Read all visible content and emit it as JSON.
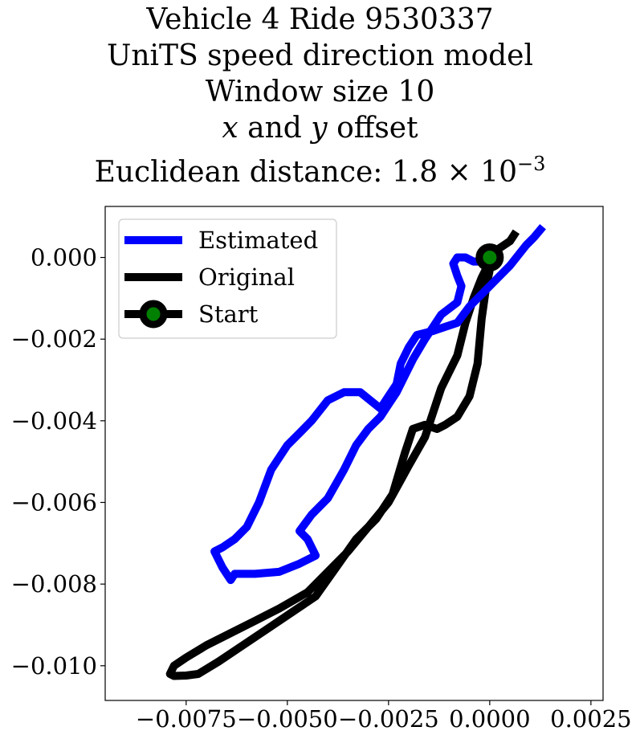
{
  "chart_data": {
    "type": "line",
    "title": {
      "line1": "Vehicle 4 Ride 9530337",
      "line2": "UniTS speed direction model",
      "line3": "Window size 10",
      "line4_var_x": "x",
      "line4_mid": " and ",
      "line4_var_y": "y",
      "line4_end": " offset",
      "line5_prefix": "Euclidean distance: 1.8 × 10",
      "line5_exponent": "−3"
    },
    "xlim": [
      -0.0095,
      0.0028
    ],
    "ylim": [
      -0.01085,
      0.00125
    ],
    "xticks": [
      {
        "value": -0.0075,
        "label": "−0.0075"
      },
      {
        "value": -0.005,
        "label": "−0.0050"
      },
      {
        "value": -0.0025,
        "label": "−0.0025"
      },
      {
        "value": 0.0,
        "label": "0.0000"
      },
      {
        "value": 0.0025,
        "label": "0.0025"
      }
    ],
    "yticks": [
      {
        "value": 0.0,
        "label": "0.000"
      },
      {
        "value": -0.002,
        "label": "−0.002"
      },
      {
        "value": -0.004,
        "label": "−0.004"
      },
      {
        "value": -0.006,
        "label": "−0.006"
      },
      {
        "value": -0.008,
        "label": "−0.008"
      },
      {
        "value": -0.01,
        "label": "−0.010"
      }
    ],
    "grid": false,
    "legend_position": "top-left",
    "series": [
      {
        "name": "Estimated",
        "color": "#0000ff",
        "x": [
          0.00125,
          0.0011,
          0.0009,
          0.0005,
          0.0,
          -0.0005,
          -0.0008,
          -0.0011,
          -0.0014,
          -0.0018,
          -0.002,
          -0.0022,
          -0.0023,
          -0.0025,
          -0.0027,
          -0.0032,
          -0.0036,
          -0.004,
          -0.0044,
          -0.0047,
          -0.005,
          -0.0054,
          -0.0057,
          -0.006,
          -0.0063,
          -0.0066,
          -0.0068,
          -0.0066,
          -0.0064,
          -0.0063,
          -0.0058,
          -0.0052,
          -0.0047,
          -0.0043,
          -0.0045,
          -0.0047,
          -0.0044,
          -0.004,
          -0.0036,
          -0.0033,
          -0.003,
          -0.0027,
          -0.0025,
          -0.0023,
          -0.0021,
          -0.0019,
          -0.0016,
          -0.0012,
          -0.0008,
          -0.0007,
          -0.0008,
          -0.0009,
          -0.0008,
          -0.0006,
          -0.0004,
          -0.0001
        ],
        "y": [
          0.00068,
          0.0005,
          0.0003,
          -0.0002,
          -0.0007,
          -0.0012,
          -0.0016,
          -0.0017,
          -0.0018,
          -0.0019,
          -0.0022,
          -0.0026,
          -0.0031,
          -0.0034,
          -0.0037,
          -0.0033,
          -0.0033,
          -0.0035,
          -0.004,
          -0.0043,
          -0.0046,
          -0.0052,
          -0.006,
          -0.0066,
          -0.0069,
          -0.0071,
          -0.0072,
          -0.0076,
          -0.0079,
          -0.00775,
          -0.00775,
          -0.0077,
          -0.0075,
          -0.0073,
          -0.0069,
          -0.0067,
          -0.0063,
          -0.0059,
          -0.0052,
          -0.0046,
          -0.0042,
          -0.0039,
          -0.0036,
          -0.0033,
          -0.0029,
          -0.0025,
          -0.002,
          -0.0014,
          -0.0011,
          -0.0007,
          -0.00045,
          -0.00015,
          0.0,
          0.0,
          -0.0001,
          -0.0001
        ]
      },
      {
        "name": "Original",
        "color": "#000000",
        "x": [
          0.0006,
          0.0005,
          0.0002,
          0.0,
          -0.0002,
          -0.0004,
          -0.0006,
          -0.0008,
          -0.0012,
          -0.0014,
          -0.0016,
          -0.002,
          -0.0025,
          -0.003,
          -0.0035,
          -0.004,
          -0.0045,
          -0.0052,
          -0.0058,
          -0.0064,
          -0.007,
          -0.0075,
          -0.0078,
          -0.0079,
          -0.0078,
          -0.0075,
          -0.0072,
          -0.0067,
          -0.0061,
          -0.0055,
          -0.0049,
          -0.0043,
          -0.0038,
          -0.0033,
          -0.0028,
          -0.0024,
          -0.0021,
          -0.0019,
          -0.0016,
          -0.0013,
          -0.0011,
          -0.0008,
          -0.0005,
          -0.0003,
          -0.0002,
          -0.0001,
          0.0
        ],
        "y": [
          0.00055,
          0.0004,
          0.0002,
          -0.0001,
          -0.0005,
          -0.001,
          -0.0016,
          -0.0024,
          -0.0032,
          -0.0038,
          -0.0044,
          -0.0051,
          -0.006,
          -0.0066,
          -0.0072,
          -0.0077,
          -0.0082,
          -0.0086,
          -0.0089,
          -0.0092,
          -0.0095,
          -0.0098,
          -0.01,
          -0.0102,
          -0.01025,
          -0.01024,
          -0.0102,
          -0.0099,
          -0.0095,
          -0.0091,
          -0.0087,
          -0.0083,
          -0.0076,
          -0.0069,
          -0.0064,
          -0.0058,
          -0.0048,
          -0.0042,
          -0.0041,
          -0.0042,
          -0.0041,
          -0.0039,
          -0.0034,
          -0.0026,
          -0.0015,
          -0.0008,
          -0.0003
        ]
      },
      {
        "name": "Start",
        "color": "#000000",
        "marker_color": "#008000",
        "x": [
          0.0
        ],
        "y": [
          0.0
        ]
      }
    ]
  }
}
